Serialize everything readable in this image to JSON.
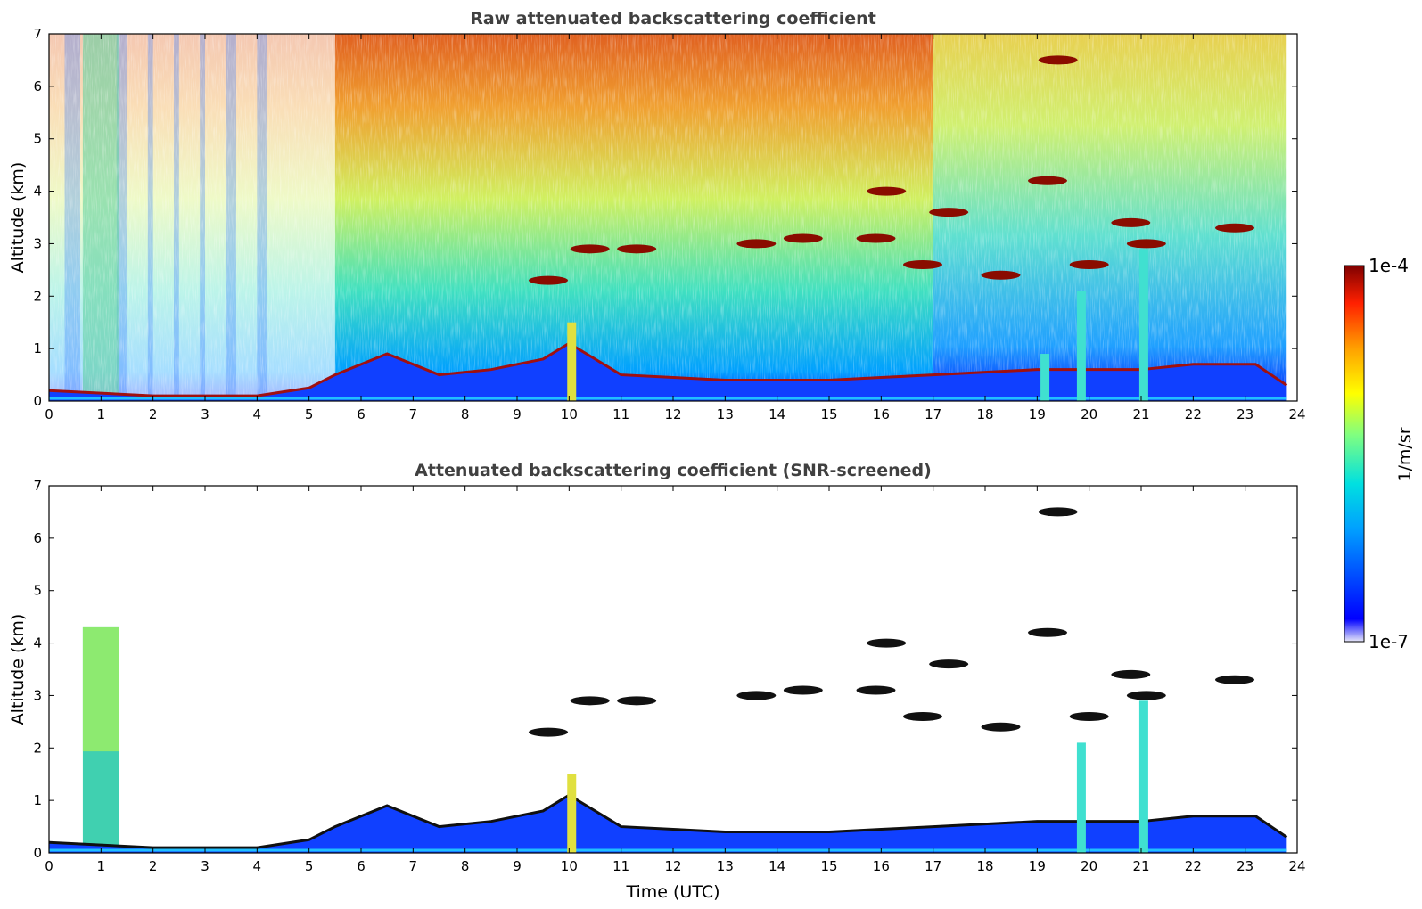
{
  "chart_data": [
    {
      "type": "heatmap",
      "title": "Raw attenuated backscattering coefficient",
      "xlabel": "",
      "ylabel": "Altitude (km)",
      "xlim": [
        0,
        24
      ],
      "ylim": [
        0,
        7
      ],
      "x_ticks": [
        "0",
        "1",
        "2",
        "3",
        "4",
        "5",
        "6",
        "7",
        "8",
        "9",
        "10",
        "11",
        "12",
        "13",
        "14",
        "15",
        "16",
        "17",
        "18",
        "19",
        "20",
        "21",
        "22",
        "23",
        "24"
      ],
      "y_ticks": [
        "0",
        "1",
        "2",
        "3",
        "4",
        "5",
        "6",
        "7"
      ],
      "features": {
        "surface_layer": [
          [
            0,
            0.2
          ],
          [
            2,
            0.1
          ],
          [
            4,
            0.1
          ],
          [
            5,
            0.25
          ],
          [
            5.5,
            0.5
          ],
          [
            6.5,
            0.9
          ],
          [
            7.5,
            0.5
          ],
          [
            8.5,
            0.6
          ],
          [
            9.5,
            0.8
          ],
          [
            10,
            1.1
          ],
          [
            11,
            0.5
          ],
          [
            12,
            0.45
          ],
          [
            13,
            0.4
          ],
          [
            14,
            0.4
          ],
          [
            15,
            0.4
          ],
          [
            16,
            0.45
          ],
          [
            17,
            0.5
          ],
          [
            18,
            0.55
          ],
          [
            19,
            0.6
          ],
          [
            20,
            0.6
          ],
          [
            21,
            0.6
          ],
          [
            22,
            0.7
          ],
          [
            23.2,
            0.7
          ],
          [
            23.8,
            0.3
          ]
        ],
        "cloud_patches": [
          [
            9.6,
            2.3
          ],
          [
            10.4,
            2.9
          ],
          [
            11.3,
            2.9
          ],
          [
            13.6,
            3.0
          ],
          [
            14.5,
            3.1
          ],
          [
            15.9,
            3.1
          ],
          [
            16.1,
            4.0
          ],
          [
            16.8,
            2.6
          ],
          [
            17.3,
            3.6
          ],
          [
            18.3,
            2.4
          ],
          [
            19.2,
            4.2
          ],
          [
            19.4,
            6.5
          ],
          [
            20.0,
            2.6
          ],
          [
            20.8,
            3.4
          ],
          [
            21.1,
            3.0
          ],
          [
            22.8,
            3.3
          ]
        ],
        "vertical_streaks": [
          1.0,
          10.05,
          19.15,
          19.85,
          21.05
        ],
        "signal_dropouts": [
          [
            0.3,
            0.6
          ],
          [
            1.3,
            1.5
          ],
          [
            1.9,
            2.0
          ],
          [
            2.4,
            2.5
          ],
          [
            2.9,
            3.0
          ],
          [
            3.4,
            3.6
          ],
          [
            4.0,
            4.2
          ]
        ]
      }
    },
    {
      "type": "heatmap",
      "title": "Attenuated backscattering coefficient (SNR-screened)",
      "xlabel": "Time (UTC)",
      "ylabel": "Altitude (km)",
      "xlim": [
        0,
        24
      ],
      "ylim": [
        0,
        7
      ],
      "x_ticks": [
        "0",
        "1",
        "2",
        "3",
        "4",
        "5",
        "6",
        "7",
        "8",
        "9",
        "10",
        "11",
        "12",
        "13",
        "14",
        "15",
        "16",
        "17",
        "18",
        "19",
        "20",
        "21",
        "22",
        "23",
        "24"
      ],
      "y_ticks": [
        "0",
        "1",
        "2",
        "3",
        "4",
        "5",
        "6",
        "7"
      ],
      "features": {
        "surface_layer": [
          [
            0,
            0.2
          ],
          [
            2,
            0.1
          ],
          [
            4,
            0.1
          ],
          [
            5,
            0.25
          ],
          [
            5.5,
            0.5
          ],
          [
            6.5,
            0.9
          ],
          [
            7.5,
            0.5
          ],
          [
            8.5,
            0.6
          ],
          [
            9.5,
            0.8
          ],
          [
            10,
            1.1
          ],
          [
            11,
            0.5
          ],
          [
            12,
            0.45
          ],
          [
            13,
            0.4
          ],
          [
            14,
            0.4
          ],
          [
            15,
            0.4
          ],
          [
            16,
            0.45
          ],
          [
            17,
            0.5
          ],
          [
            18,
            0.55
          ],
          [
            19,
            0.6
          ],
          [
            20,
            0.6
          ],
          [
            21,
            0.6
          ],
          [
            22,
            0.7
          ],
          [
            23.2,
            0.7
          ],
          [
            23.8,
            0.3
          ]
        ],
        "cloud_patches": [
          [
            9.6,
            2.3
          ],
          [
            10.4,
            2.9
          ],
          [
            11.3,
            2.9
          ],
          [
            13.6,
            3.0
          ],
          [
            14.5,
            3.1
          ],
          [
            15.9,
            3.1
          ],
          [
            16.1,
            4.0
          ],
          [
            16.8,
            2.6
          ],
          [
            17.3,
            3.6
          ],
          [
            18.3,
            2.4
          ],
          [
            19.2,
            4.2
          ],
          [
            19.4,
            6.5
          ],
          [
            20.0,
            2.6
          ],
          [
            20.8,
            3.4
          ],
          [
            21.1,
            3.0
          ],
          [
            22.8,
            3.3
          ]
        ],
        "vertical_streaks": [
          1.0,
          10.05,
          19.85,
          21.05
        ]
      }
    }
  ],
  "colorbar": {
    "label": "1/m/sr",
    "max_label": "1e-4",
    "min_label": "1e-7",
    "min": 1e-07,
    "max": 0.0001,
    "scale": "log",
    "colors": [
      "#e8e8f8",
      "#0000ff",
      "#00a0ff",
      "#00e0e0",
      "#80ff80",
      "#ffff00",
      "#ffa000",
      "#ff2000",
      "#800000"
    ]
  }
}
